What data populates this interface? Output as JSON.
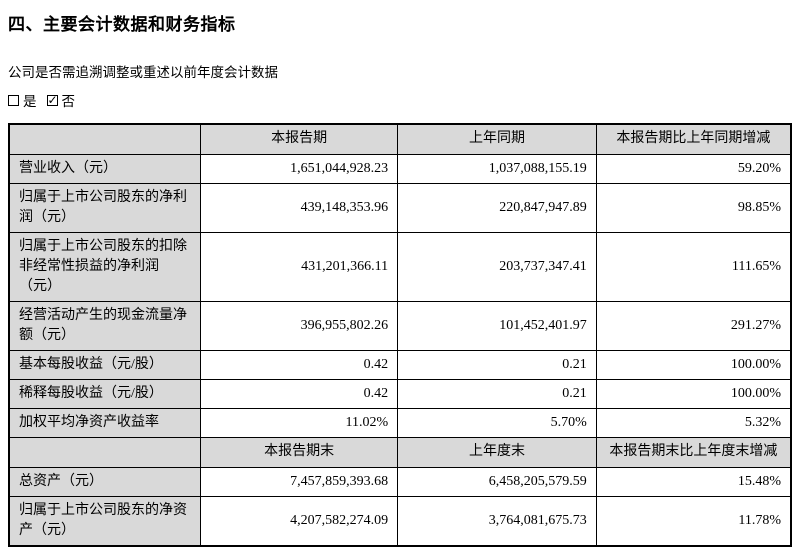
{
  "section": {
    "title": "四、主要会计数据和财务指标",
    "restatement_question": "公司是否需追溯调整或重述以前年度会计数据",
    "restatement_options": [
      {
        "label": "是",
        "checked": false
      },
      {
        "label": "否",
        "checked": true
      }
    ]
  },
  "table": {
    "period_header": {
      "label": "",
      "current": "本报告期",
      "prior": "上年同期",
      "change": "本报告期比上年同期增减"
    },
    "period_rows": [
      {
        "label": "营业收入（元）",
        "current": "1,651,044,928.23",
        "prior": "1,037,088,155.19",
        "change": "59.20%"
      },
      {
        "label": "归属于上市公司股东的净利润（元）",
        "current": "439,148,353.96",
        "prior": "220,847,947.89",
        "change": "98.85%"
      },
      {
        "label": "归属于上市公司股东的扣除非经常性损益的净利润（元）",
        "current": "431,201,366.11",
        "prior": "203,737,347.41",
        "change": "111.65%"
      },
      {
        "label": "经营活动产生的现金流量净额（元）",
        "current": "396,955,802.26",
        "prior": "101,452,401.97",
        "change": "291.27%"
      },
      {
        "label": "基本每股收益（元/股）",
        "current": "0.42",
        "prior": "0.21",
        "change": "100.00%"
      },
      {
        "label": "稀释每股收益（元/股）",
        "current": "0.42",
        "prior": "0.21",
        "change": "100.00%"
      },
      {
        "label": "加权平均净资产收益率",
        "current": "11.02%",
        "prior": "5.70%",
        "change": "5.32%"
      }
    ],
    "endpoint_header": {
      "label": "",
      "current": "本报告期末",
      "prior": "上年度末",
      "change": "本报告期末比上年度末增减"
    },
    "endpoint_rows": [
      {
        "label": "总资产（元）",
        "current": "7,457,859,393.68",
        "prior": "6,458,205,579.59",
        "change": "15.48%"
      },
      {
        "label": "归属于上市公司股东的净资产（元）",
        "current": "4,207,582,274.09",
        "prior": "3,764,081,675.73",
        "change": "11.78%"
      }
    ]
  }
}
